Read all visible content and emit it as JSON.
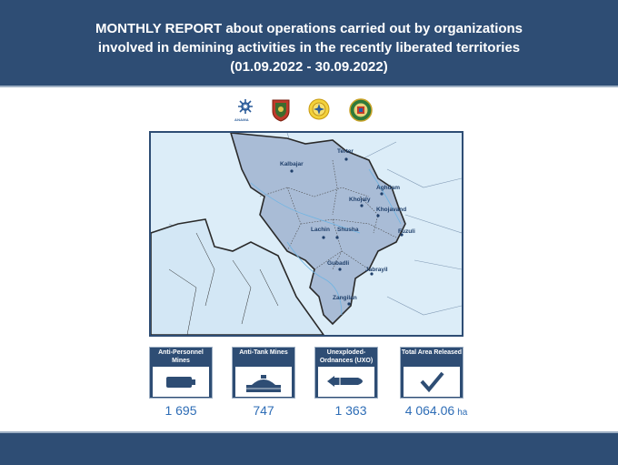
{
  "header": {
    "title_bold": "MONTHLY REPORT",
    "title_rest": " about operations carried out by organizations",
    "line2": "involved in demining activities in the recently liberated territories",
    "line3": "(01.09.2022 - 30.09.2022)"
  },
  "logos": [
    {
      "icon": "anama-logo",
      "caption": "ANAMA"
    },
    {
      "icon": "army-shield-logo"
    },
    {
      "icon": "emergency-ministry-logo"
    },
    {
      "icon": "border-service-logo"
    }
  ],
  "map": {
    "cities": [
      "Terter",
      "Kalbajar",
      "Aghdam",
      "Khojaly",
      "Khojavand",
      "Lachin",
      "Shusha",
      "Fuzuli",
      "Gubadli",
      "Jabrayil",
      "Zangilan"
    ]
  },
  "stats": [
    {
      "label": "Anti-Personnel Mines",
      "value": "1 695",
      "icon": "battery-mine-icon"
    },
    {
      "label": "Anti-Tank Mines",
      "value": "747",
      "icon": "anti-tank-mine-icon"
    },
    {
      "label": "Unexploded-Ordnances (UXO)",
      "value": "1 363",
      "icon": "bomb-icon"
    },
    {
      "label": "Total Area Released",
      "value": "4 064.06",
      "unit": "ha",
      "icon": "checkmark-icon"
    }
  ],
  "colors": {
    "header_bg": "#2e4d74",
    "value_text": "#2e6db6",
    "map_water": "#cfe6f6",
    "map_region": "#a9bcd6"
  }
}
